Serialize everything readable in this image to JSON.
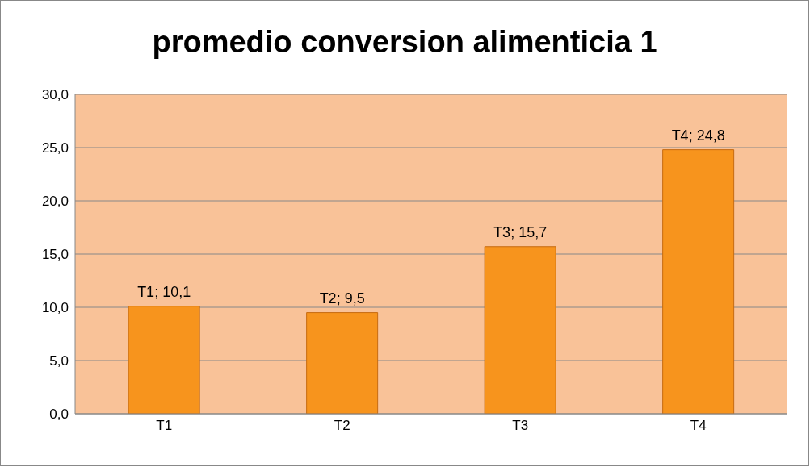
{
  "chart_data": {
    "type": "bar",
    "title": "promedio conversion alimenticia 1",
    "categories": [
      "T1",
      "T2",
      "T3",
      "T4"
    ],
    "values": [
      10.1,
      9.5,
      15.7,
      24.8
    ],
    "value_labels": [
      "T1; 10,1",
      "T2; 9,5",
      "T3; 15,7",
      "T4; 24,8"
    ],
    "color": "#f7941d",
    "ylim": [
      0,
      30
    ],
    "yticks": [
      {
        "value": 0,
        "label": "0,0"
      },
      {
        "value": 5,
        "label": "5,0"
      },
      {
        "value": 10,
        "label": "10,0"
      },
      {
        "value": 15,
        "label": "15,0"
      },
      {
        "value": 20,
        "label": "20,0"
      },
      {
        "value": 25,
        "label": "25,0"
      },
      {
        "value": 30,
        "label": "30,0"
      }
    ],
    "grid": "y"
  }
}
